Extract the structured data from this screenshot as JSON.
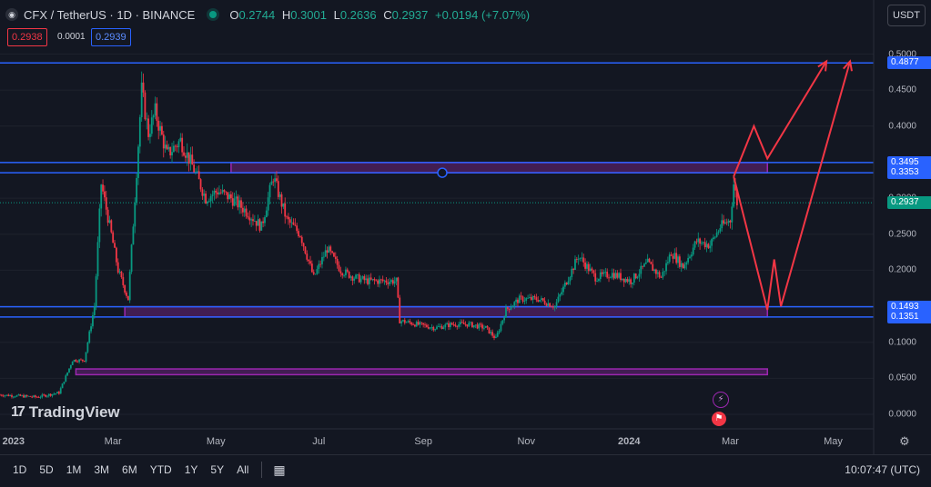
{
  "header": {
    "symbol_label": "CFX / TetherUS · 1D · BINANCE",
    "logo_glyph": "◉",
    "ohlc": [
      {
        "key": "O",
        "value": "0.2744"
      },
      {
        "key": "H",
        "value": "0.3001"
      },
      {
        "key": "L",
        "value": "0.2636"
      },
      {
        "key": "C",
        "value": "0.2937"
      }
    ],
    "change": "+0.0194 (+7.07%)",
    "sell_price": "0.2938",
    "spread": "0.0001",
    "buy_price": "0.2939"
  },
  "currency_button": "USDT",
  "brand": {
    "mark": "17",
    "name": "TradingView"
  },
  "colors": {
    "bg": "#131722",
    "up": "#089981",
    "down": "#f23645",
    "line": "#2962ff",
    "zone": "#9c27b0",
    "arrow": "#f23645"
  },
  "price_axis": {
    "labels": [
      "0.5000",
      "0.4500",
      "0.4000",
      "0.3500",
      "0.3000",
      "0.2500",
      "0.2000",
      "0.1500",
      "0.1000",
      "0.0500",
      "0.0000"
    ],
    "tags": [
      {
        "value": "0.4877",
        "color": "#2962ff"
      },
      {
        "value": "0.3495",
        "color": "#2962ff"
      },
      {
        "value": "0.3353",
        "color": "#2962ff"
      },
      {
        "value": "0.2937",
        "color": "#089981"
      },
      {
        "value": "0.1493",
        "color": "#2962ff"
      },
      {
        "value": "0.1351",
        "color": "#2962ff"
      }
    ]
  },
  "time_axis": {
    "labels": [
      "2023",
      "Mar",
      "May",
      "Jul",
      "Sep",
      "Nov",
      "2024",
      "Mar",
      "May"
    ]
  },
  "range_buttons": [
    "1D",
    "5D",
    "1M",
    "3M",
    "6M",
    "YTD",
    "1Y",
    "5Y",
    "All"
  ],
  "clock": "10:07:47 (UTC)",
  "chart_data": {
    "type": "candlestick",
    "title": "CFX / TetherUS · 1D · BINANCE",
    "ylim": [
      0,
      0.5
    ],
    "x_range": [
      "2022-12-24",
      "2024-05-25"
    ],
    "horizontal_lines": [
      0.4877,
      0.3495,
      0.3353,
      0.1493,
      0.1351
    ],
    "zones": [
      {
        "from": "2023-05-10",
        "to": "2024-03-23",
        "low": 0.3353,
        "high": 0.3495
      },
      {
        "from": "2023-03-08",
        "to": "2024-03-23",
        "low": 0.1351,
        "high": 0.1493
      },
      {
        "from": "2023-02-07",
        "to": "2024-03-23",
        "low": 0.055,
        "high": 0.063
      }
    ],
    "last_price": 0.2937,
    "series": [
      {
        "name": "close",
        "points": [
          [
            "2022-12-24",
            0.027
          ],
          [
            "2023-01-15",
            0.024
          ],
          [
            "2023-01-28",
            0.03
          ],
          [
            "2023-02-05",
            0.075
          ],
          [
            "2023-02-12",
            0.075
          ],
          [
            "2023-02-18",
            0.15
          ],
          [
            "2023-02-22",
            0.32
          ],
          [
            "2023-02-28",
            0.25
          ],
          [
            "2023-03-04",
            0.2
          ],
          [
            "2023-03-10",
            0.16
          ],
          [
            "2023-03-14",
            0.3
          ],
          [
            "2023-03-18",
            0.45
          ],
          [
            "2023-03-22",
            0.39
          ],
          [
            "2023-03-26",
            0.42
          ],
          [
            "2023-04-02",
            0.36
          ],
          [
            "2023-04-10",
            0.38
          ],
          [
            "2023-04-18",
            0.34
          ],
          [
            "2023-04-25",
            0.3
          ],
          [
            "2023-05-02",
            0.31
          ],
          [
            "2023-05-10",
            0.3
          ],
          [
            "2023-05-20",
            0.28
          ],
          [
            "2023-05-28",
            0.26
          ],
          [
            "2023-06-04",
            0.33
          ],
          [
            "2023-06-12",
            0.27
          ],
          [
            "2023-06-20",
            0.25
          ],
          [
            "2023-06-28",
            0.19
          ],
          [
            "2023-07-06",
            0.23
          ],
          [
            "2023-07-14",
            0.2
          ],
          [
            "2023-07-22",
            0.19
          ],
          [
            "2023-07-30",
            0.185
          ],
          [
            "2023-08-08",
            0.185
          ],
          [
            "2023-08-16",
            0.185
          ],
          [
            "2023-08-18",
            0.13
          ],
          [
            "2023-08-28",
            0.125
          ],
          [
            "2023-09-08",
            0.12
          ],
          [
            "2023-09-18",
            0.125
          ],
          [
            "2023-09-28",
            0.125
          ],
          [
            "2023-10-08",
            0.12
          ],
          [
            "2023-10-14",
            0.105
          ],
          [
            "2023-10-20",
            0.145
          ],
          [
            "2023-10-28",
            0.16
          ],
          [
            "2023-11-08",
            0.16
          ],
          [
            "2023-11-18",
            0.15
          ],
          [
            "2023-11-24",
            0.18
          ],
          [
            "2023-12-02",
            0.22
          ],
          [
            "2023-12-12",
            0.19
          ],
          [
            "2023-12-22",
            0.195
          ],
          [
            "2024-01-02",
            0.185
          ],
          [
            "2024-01-12",
            0.21
          ],
          [
            "2024-01-20",
            0.19
          ],
          [
            "2024-01-26",
            0.225
          ],
          [
            "2024-02-02",
            0.205
          ],
          [
            "2024-02-10",
            0.24
          ],
          [
            "2024-02-18",
            0.235
          ],
          [
            "2024-02-24",
            0.26
          ],
          [
            "2024-03-01",
            0.27
          ],
          [
            "2024-03-03",
            0.32
          ],
          [
            "2024-03-05",
            0.294
          ]
        ]
      }
    ],
    "projection_arrows": [
      [
        [
          "2024-03-03",
          0.33
        ],
        [
          "2024-03-15",
          0.4
        ],
        [
          "2024-03-23",
          0.355
        ],
        [
          "2024-04-27",
          0.49
        ]
      ],
      [
        [
          "2024-03-03",
          0.33
        ],
        [
          "2024-03-23",
          0.145
        ],
        [
          "2024-03-27",
          0.215
        ],
        [
          "2024-03-31",
          0.15
        ],
        [
          "2024-05-11",
          0.49
        ]
      ]
    ]
  }
}
